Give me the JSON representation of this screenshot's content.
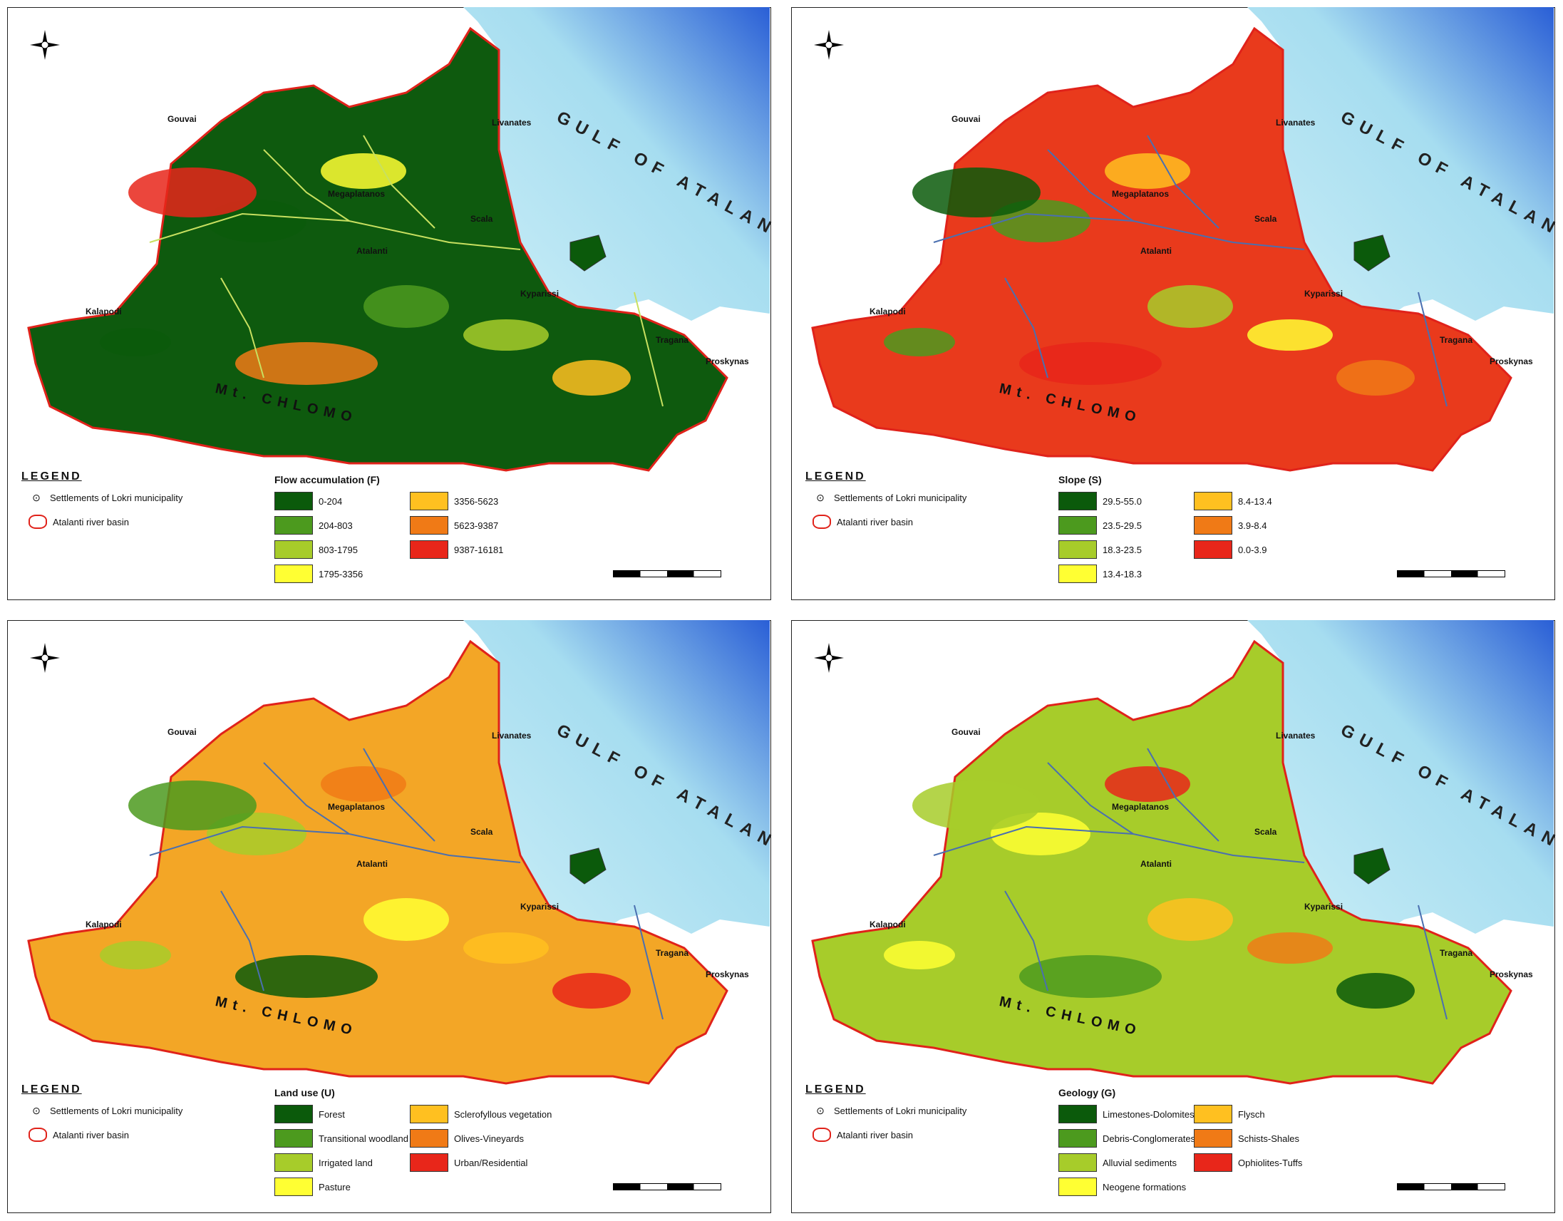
{
  "common": {
    "legend_heading": "LEGEND",
    "legend_settlements": "Settlements of Lokri municipality",
    "legend_basin": "Atalanti river basin",
    "gulf": "GULF OF ATALANTI",
    "mountain": "Mt. CHLOMO",
    "places": [
      "Gouvai",
      "Livanates",
      "Megaplatanos",
      "Scala",
      "Atalanti",
      "Kyparissi",
      "Kalapodi",
      "Tragana",
      "Proskynas"
    ]
  },
  "panels": [
    {
      "title": "Flow accumulation (F)",
      "land_color": "#0e5a0e",
      "classes": [
        {
          "label": "0-204",
          "color": "#0b5a0b"
        },
        {
          "label": "204-803",
          "color": "#4c9a1e"
        },
        {
          "label": "803-1795",
          "color": "#a7cc2a"
        },
        {
          "label": "1795-3356",
          "color": "#ffff33"
        },
        {
          "label": "3356-5623",
          "color": "#ffc020"
        },
        {
          "label": "5623-9387",
          "color": "#f07a16"
        },
        {
          "label": "9387-16181",
          "color": "#e8261a"
        }
      ]
    },
    {
      "title": "Slope (S)",
      "land_color": "#e93a1c",
      "classes": [
        {
          "label": "29.5-55.0",
          "color": "#0b5a0b"
        },
        {
          "label": "23.5-29.5",
          "color": "#4c9a1e"
        },
        {
          "label": "18.3-23.5",
          "color": "#a7cc2a"
        },
        {
          "label": "13.4-18.3",
          "color": "#ffff33"
        },
        {
          "label": "8.4-13.4",
          "color": "#ffc020"
        },
        {
          "label": "3.9-8.4",
          "color": "#f07a16"
        },
        {
          "label": "0.0-3.9",
          "color": "#e8261a"
        }
      ]
    },
    {
      "title": "Land use (U)",
      "land_color": "#f3a626",
      "classes": [
        {
          "label": "Forest",
          "color": "#0b5a0b"
        },
        {
          "label": "Transitional woodland",
          "color": "#4c9a1e"
        },
        {
          "label": "Irrigated land",
          "color": "#a7cc2a"
        },
        {
          "label": "Pasture",
          "color": "#ffff33"
        },
        {
          "label": "Sclerofyllous vegetation",
          "color": "#ffc020"
        },
        {
          "label": "Olives-Vineyards",
          "color": "#f07a16"
        },
        {
          "label": "Urban/Residential",
          "color": "#e8261a"
        }
      ]
    },
    {
      "title": "Geology (G)",
      "land_color": "#a7cc2a",
      "classes": [
        {
          "label": "Limestones-Dolomites",
          "color": "#0b5a0b"
        },
        {
          "label": "Debris-Conglomerates",
          "color": "#4c9a1e"
        },
        {
          "label": "Alluvial sediments",
          "color": "#a7cc2a"
        },
        {
          "label": "Neogene formations",
          "color": "#ffff33"
        },
        {
          "label": "Flysch",
          "color": "#ffc020"
        },
        {
          "label": "Schists-Shales",
          "color": "#f07a16"
        },
        {
          "label": "Ophiolites-Tuffs",
          "color": "#e8261a"
        }
      ]
    }
  ]
}
